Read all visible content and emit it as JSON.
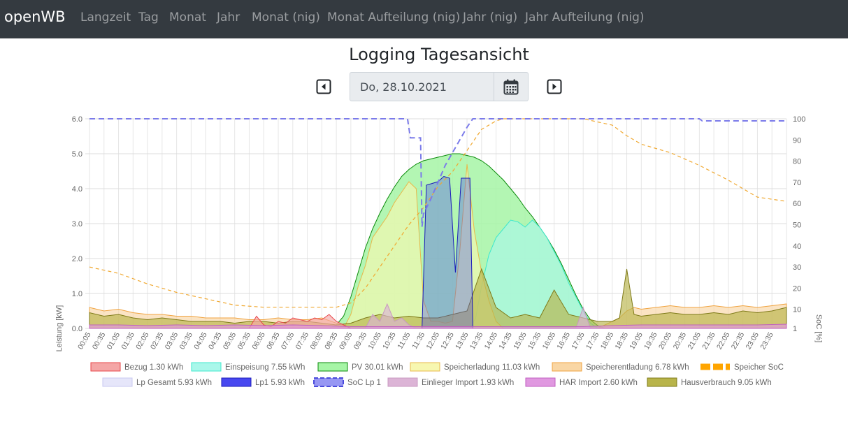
{
  "navbar": {
    "brand": "openWB",
    "items": [
      "Langzeit",
      "Tag",
      "Monat",
      "Jahr",
      "Monat (nig)",
      "Monat Aufteilung (nig)",
      "Jahr (nig)",
      "Jahr Aufteilung (nig)"
    ]
  },
  "page": {
    "title": "Logging Tagesansicht"
  },
  "date_picker": {
    "value": "Do, 28.10.2021"
  },
  "icons": {
    "prev": "caret-left-square-icon",
    "next": "caret-right-square-icon",
    "calendar": "calendar-icon"
  },
  "chart_data": {
    "type": "area",
    "ylabel": "Leistung [kW]",
    "y2label": "SoC [%]",
    "ylim": [
      0,
      6
    ],
    "y2lim": [
      1,
      100
    ],
    "yticks": [
      "0.0",
      "1.0",
      "2.0",
      "3.0",
      "4.0",
      "5.0",
      "6.0"
    ],
    "y2ticks": [
      "1",
      "10",
      "20",
      "30",
      "40",
      "50",
      "60",
      "70",
      "80",
      "90",
      "100"
    ],
    "xlabels": [
      "00:05",
      "00:35",
      "01:05",
      "01:35",
      "02:05",
      "02:35",
      "03:05",
      "03:35",
      "04:05",
      "04:35",
      "05:05",
      "05:35",
      "06:05",
      "06:35",
      "07:05",
      "07:35",
      "08:05",
      "08:35",
      "09:05",
      "09:35",
      "10:05",
      "10:35",
      "11:05",
      "11:35",
      "12:05",
      "12:35",
      "13:05",
      "13:35",
      "14:05",
      "14:35",
      "15:05",
      "15:35",
      "16:05",
      "16:35",
      "17:05",
      "17:35",
      "18:05",
      "18:35",
      "19:05",
      "19:35",
      "20:05",
      "20:35",
      "21:05",
      "21:35",
      "22:05",
      "22:35",
      "23:05",
      "23:35"
    ],
    "grid": true,
    "legend_position": "bottom",
    "legend": [
      {
        "label": "Bezug 1.30 kWh",
        "fill": "#f4a6a6",
        "stroke": "#e8474a",
        "style": "box"
      },
      {
        "label": "Einspeisung 7.55 kWh",
        "fill": "#a9f7ea",
        "stroke": "#3ee8cd",
        "style": "box"
      },
      {
        "label": "PV 30.01 kWh",
        "fill": "#a6f5a6",
        "stroke": "#0b8a0b",
        "style": "box"
      },
      {
        "label": "Speicherladung 11.03 kWh",
        "fill": "#f7f7b0",
        "stroke": "#e8b84a",
        "style": "box"
      },
      {
        "label": "Speicherentladung 6.78 kWh",
        "fill": "#f9d6a4",
        "stroke": "#f0a340",
        "style": "box"
      },
      {
        "label": "Speicher SoC",
        "fill": "#ffa500",
        "stroke": "#ffa500",
        "style": "dash"
      },
      {
        "label": "Lp Gesamt 5.93 kWh",
        "fill": "#e6e6fa",
        "stroke": "#c8c8f0",
        "style": "box"
      },
      {
        "label": "Lp1 5.93 kWh",
        "fill": "#4848f0",
        "stroke": "#1b1bb8",
        "style": "box"
      },
      {
        "label": "SoC Lp 1",
        "fill": "#8c8cf2",
        "stroke": "#4b4bdc",
        "style": "dashbox"
      },
      {
        "label": "Einlieger Import 1.93 kWh",
        "fill": "#dcb4d6",
        "stroke": "#c898c0",
        "style": "box"
      },
      {
        "label": "HAR Import 2.60 kWh",
        "fill": "#e098e0",
        "stroke": "#c05ec0",
        "style": "box"
      },
      {
        "label": "Hausverbrauch 9.05 kWh",
        "fill": "#b8b44a",
        "stroke": "#7e7a18",
        "style": "box"
      }
    ],
    "series": [
      {
        "name": "PV 30.01 kWh",
        "x": [
          0,
          8.25,
          8.5,
          8.75,
          9,
          9.25,
          9.5,
          9.75,
          10,
          10.25,
          10.5,
          10.75,
          11,
          11.25,
          11.5,
          11.75,
          12,
          12.25,
          12.5,
          12.75,
          13,
          13.25,
          13.5,
          13.75,
          14,
          14.25,
          14.5,
          14.75,
          15,
          15.25,
          15.5,
          15.75,
          16,
          16.25,
          16.5,
          16.75,
          17,
          17.25,
          17.5,
          17.75,
          18,
          24
        ],
        "values": [
          0,
          0,
          0.1,
          0.35,
          0.9,
          1.6,
          2.3,
          2.85,
          3.3,
          3.7,
          4.05,
          4.35,
          4.55,
          4.7,
          4.8,
          4.85,
          4.9,
          4.95,
          5.0,
          5.0,
          4.95,
          4.9,
          4.8,
          4.65,
          4.45,
          4.25,
          4.0,
          3.75,
          3.45,
          3.2,
          2.9,
          2.6,
          2.25,
          1.85,
          1.4,
          0.95,
          0.55,
          0.25,
          0.08,
          0,
          0,
          0
        ]
      },
      {
        "name": "Einspeisung 7.55 kWh",
        "x": [
          0,
          13.1,
          13.3,
          13.5,
          13.75,
          14,
          14.25,
          14.5,
          14.75,
          15,
          15.25,
          15.5,
          15.75,
          16,
          16.25,
          16.5,
          16.75,
          17,
          17.25,
          17.5,
          24
        ],
        "values": [
          0,
          0,
          0.3,
          1.2,
          2.1,
          2.6,
          2.85,
          3.1,
          3.05,
          2.9,
          3.1,
          2.9,
          2.6,
          2.2,
          1.8,
          1.3,
          0.9,
          0.5,
          0.15,
          0,
          0
        ]
      },
      {
        "name": "Speicherladung 11.03 kWh",
        "x": [
          0,
          8.75,
          9,
          9.25,
          9.5,
          9.75,
          10,
          10.25,
          10.5,
          10.75,
          11,
          11.25,
          11.5,
          11.75,
          12,
          12.25,
          12.5,
          12.75,
          13,
          13.25,
          13.5,
          13.75,
          14,
          14.25,
          24
        ],
        "values": [
          0,
          0,
          0.4,
          1.2,
          1.8,
          2.6,
          2.9,
          3.2,
          3.6,
          3.9,
          4.2,
          4.0,
          0.8,
          0.2,
          0.2,
          0.15,
          0.2,
          2.2,
          4.7,
          2.8,
          1.6,
          0.8,
          0.2,
          0,
          0
        ]
      },
      {
        "name": "Speicherentladung 6.78 kWh",
        "x": [
          0,
          0.5,
          1,
          1.5,
          2,
          2.5,
          3,
          3.5,
          4,
          4.5,
          5,
          5.5,
          6,
          6.5,
          7,
          7.5,
          8,
          8.5,
          9,
          17.5,
          17.75,
          18,
          18.25,
          18.5,
          18.75,
          19,
          19.5,
          20,
          20.5,
          21,
          21.5,
          22,
          22.5,
          23,
          23.5,
          24
        ],
        "values": [
          0.6,
          0.5,
          0.55,
          0.45,
          0.4,
          0.4,
          0.35,
          0.35,
          0.3,
          0.3,
          0.3,
          0.25,
          0.25,
          0.3,
          0.25,
          0.25,
          0.3,
          0.15,
          0,
          0,
          0.1,
          0.2,
          0.3,
          0.5,
          0.6,
          0.55,
          0.6,
          0.65,
          0.6,
          0.6,
          0.65,
          0.6,
          0.65,
          0.6,
          0.65,
          0.7
        ]
      },
      {
        "name": "Hausverbrauch 9.05 kWh",
        "x": [
          0,
          0.5,
          1,
          1.5,
          2,
          2.5,
          3,
          3.5,
          4,
          4.5,
          5,
          5.5,
          6,
          6.5,
          7,
          7.5,
          8,
          8.5,
          9,
          9.5,
          10,
          10.5,
          11,
          11.5,
          12,
          12.5,
          13,
          13.5,
          14,
          14.5,
          15,
          15.5,
          16,
          16.5,
          17,
          17.5,
          18,
          18.25,
          18.5,
          18.75,
          19,
          19.5,
          20,
          20.5,
          21,
          21.5,
          22,
          22.5,
          23,
          23.5,
          24
        ],
        "values": [
          0.45,
          0.35,
          0.4,
          0.3,
          0.25,
          0.3,
          0.25,
          0.2,
          0.2,
          0.2,
          0.15,
          0.2,
          0.2,
          0.15,
          0.2,
          0.2,
          0.15,
          0.1,
          0.15,
          0.3,
          0.4,
          0.3,
          0.35,
          0.3,
          0.3,
          0.4,
          0.5,
          1.7,
          0.6,
          0.3,
          0.4,
          0.3,
          1.1,
          0.4,
          0.3,
          0.2,
          0.2,
          0.3,
          1.7,
          0.4,
          0.35,
          0.4,
          0.45,
          0.4,
          0.4,
          0.45,
          0.4,
          0.5,
          0.45,
          0.5,
          0.6
        ]
      },
      {
        "name": "Bezug 1.30 kWh",
        "x": [
          0,
          5.5,
          5.75,
          6,
          6.25,
          6.5,
          6.75,
          7,
          7.25,
          7.5,
          7.75,
          8,
          8.25,
          8.5,
          8.75,
          9,
          24
        ],
        "values": [
          0,
          0,
          0.35,
          0.1,
          0.05,
          0.2,
          0.15,
          0.3,
          0.25,
          0.2,
          0.3,
          0.25,
          0.4,
          0.2,
          0.1,
          0,
          0
        ]
      },
      {
        "name": "Lp1 5.93 kWh",
        "x": [
          0,
          11.45,
          11.6,
          12,
          12.2,
          12.4,
          12.6,
          12.8,
          13,
          13.1,
          13.2,
          24
        ],
        "values": [
          0,
          0,
          4.1,
          4.2,
          4.35,
          4.3,
          1.6,
          4.3,
          4.3,
          4.3,
          0,
          0
        ]
      },
      {
        "name": "Einlieger Import 1.93 kWh",
        "x": [
          0,
          9.5,
          9.75,
          10,
          10.25,
          10.5,
          10.75,
          11,
          11.25,
          16.75,
          17,
          17.25,
          24
        ],
        "values": [
          0,
          0,
          0.4,
          0.2,
          0.7,
          0.2,
          0.3,
          0.1,
          0,
          0,
          0.6,
          0,
          0
        ]
      },
      {
        "name": "HAR Import 2.60 kWh",
        "x": [
          0,
          1,
          2,
          3,
          4,
          5,
          6,
          7,
          8,
          9,
          10,
          11,
          12,
          13,
          14,
          15,
          16,
          17,
          18,
          19,
          20,
          21,
          22,
          23,
          24
        ],
        "values": [
          0.1,
          0.1,
          0.08,
          0.1,
          0.08,
          0.1,
          0.08,
          0.1,
          0.08,
          0.05,
          0.05,
          0.05,
          0.05,
          0.05,
          0.05,
          0.05,
          0.05,
          0.05,
          0.08,
          0.1,
          0.1,
          0.1,
          0.1,
          0.1,
          0.12
        ]
      },
      {
        "name": "Speicher SoC",
        "axis": "y2",
        "style": "dash",
        "x": [
          0,
          1,
          2,
          3,
          4,
          5,
          6,
          7,
          8,
          8.5,
          9,
          9.5,
          10,
          10.5,
          11,
          11.5,
          12,
          12.5,
          13,
          13.5,
          14,
          14.25,
          14.5,
          15,
          16,
          17,
          18,
          18.5,
          19,
          20,
          21,
          22,
          23,
          24
        ],
        "values": [
          30,
          27,
          22,
          18,
          15,
          12,
          11,
          11,
          11,
          11,
          13,
          20,
          30,
          40,
          50,
          58,
          68,
          75,
          85,
          95,
          99,
          100,
          100,
          100,
          100,
          100,
          97,
          92,
          88,
          84,
          78,
          71,
          63,
          61
        ]
      },
      {
        "name": "SoC Lp 1",
        "axis": "y2",
        "style": "dash",
        "x": [
          0,
          10.95,
          11.05,
          11.2,
          11.4,
          11.45,
          11.5,
          11.75,
          12,
          12.25,
          12.5,
          12.75,
          13.0,
          13.2,
          13.35,
          21.0,
          21.1,
          24
        ],
        "values": [
          100,
          100,
          91,
          91,
          91,
          49,
          55,
          62,
          70,
          78,
          84,
          90,
          96,
          100,
          100,
          100,
          99,
          99
        ]
      }
    ]
  }
}
